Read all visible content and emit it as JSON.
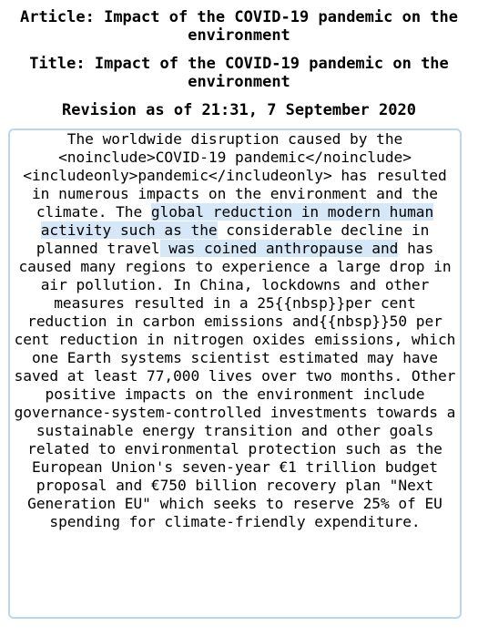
{
  "header": {
    "article": "Article: Impact of the COVID-19 pandemic on the environment",
    "title": "Title: Impact of the COVID-19 pandemic on the environment",
    "revision": "Revision as of 21:31, 7 September 2020"
  },
  "content": {
    "seg1": "The worldwide disruption caused by the <noinclude>COVID-19 pandemic</noinclude> <includeonly>pandemic</includeonly> has resulted in numerous impacts on the environment and the climate. The ",
    "hl1": "global reduction in modern human activity such as the",
    "seg2": " considerable decline in planned travel",
    "hl2": " was coined anthropause and",
    "seg3": " has caused many regions to experience a large drop in air pollution. In China, lockdowns and other measures resulted in a 25{{nbsp}}per cent reduction in carbon emissions and{{nbsp}}50 per cent reduction in nitrogen oxides emissions, which one Earth systems scientist estimated may have saved at least 77,000 lives over two months. Other positive impacts on the environment include governance-system-controlled investments towards a sustainable energy transition and other goals related to environmental protection such as the European Union's seven-year €1 trillion budget proposal and €750 billion recovery plan \"Next Generation EU\" which seeks to reserve 25% of EU spending for climate-friendly expenditure."
  },
  "colors": {
    "highlight": "#d6e8f8",
    "border": "#b9d7f0"
  }
}
